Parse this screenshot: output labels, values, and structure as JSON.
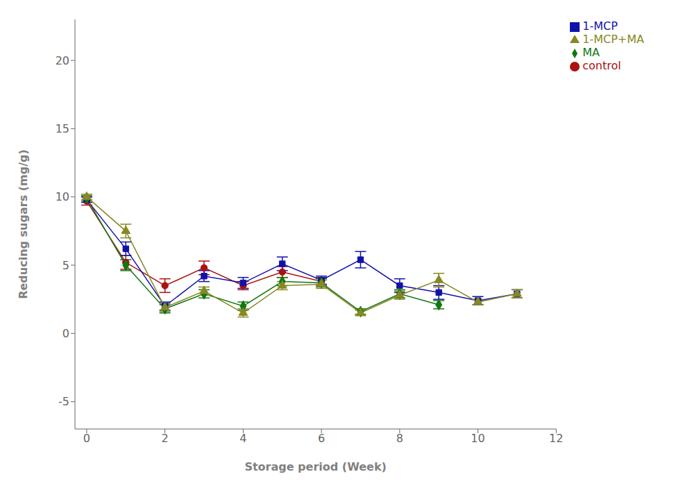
{
  "chart_data": {
    "type": "line",
    "x": [
      0,
      1,
      2,
      3,
      4,
      5,
      6,
      7,
      8,
      9,
      10,
      11
    ],
    "series": [
      {
        "name": "control",
        "color": "#aa1111",
        "marker": "circle",
        "values": [
          9.7,
          5.2,
          3.5,
          4.8,
          3.5,
          4.5,
          3.8,
          null,
          null,
          null,
          null,
          null
        ],
        "yerr": [
          0.3,
          0.5,
          0.5,
          0.5,
          0.3,
          0.4,
          0.3,
          null,
          null,
          null,
          null,
          null
        ]
      },
      {
        "name": "1-MCP",
        "color": "#1111aa",
        "marker": "square",
        "values": [
          9.8,
          6.2,
          2.0,
          4.2,
          3.7,
          5.1,
          3.9,
          5.4,
          3.5,
          3.0,
          2.4,
          2.9
        ],
        "yerr": [
          0.2,
          0.5,
          0.3,
          0.4,
          0.4,
          0.5,
          0.3,
          0.6,
          0.5,
          0.5,
          0.3,
          0.3
        ]
      },
      {
        "name": "MA",
        "color": "#117711",
        "marker": "diamond",
        "values": [
          9.9,
          5.0,
          1.8,
          2.9,
          2.0,
          3.8,
          3.7,
          1.6,
          2.9,
          2.1,
          null,
          null
        ],
        "yerr": [
          0.2,
          0.4,
          0.3,
          0.3,
          0.3,
          0.3,
          0.3,
          0.2,
          0.3,
          0.3,
          null,
          null
        ]
      },
      {
        "name": "1-MCP+MA",
        "color": "#888822",
        "marker": "triangle",
        "values": [
          10.0,
          7.5,
          1.9,
          3.1,
          1.5,
          3.5,
          3.6,
          1.5,
          2.8,
          3.9,
          2.3,
          2.9
        ],
        "yerr": [
          0.2,
          0.5,
          0.3,
          0.3,
          0.3,
          0.3,
          0.3,
          0.2,
          0.3,
          0.5,
          0.2,
          0.3
        ]
      }
    ],
    "xlabel": "Storage period (Week)",
    "ylabel": "Reducing sugars (mg/g)",
    "xlim": [
      -0.3,
      12
    ],
    "ylim": [
      -7,
      23
    ],
    "xticks": [
      0,
      2,
      4,
      6,
      8,
      10,
      12
    ],
    "yticks": [
      -5,
      0,
      5,
      10,
      15,
      20
    ],
    "legend": "upper right",
    "grid": false
  }
}
